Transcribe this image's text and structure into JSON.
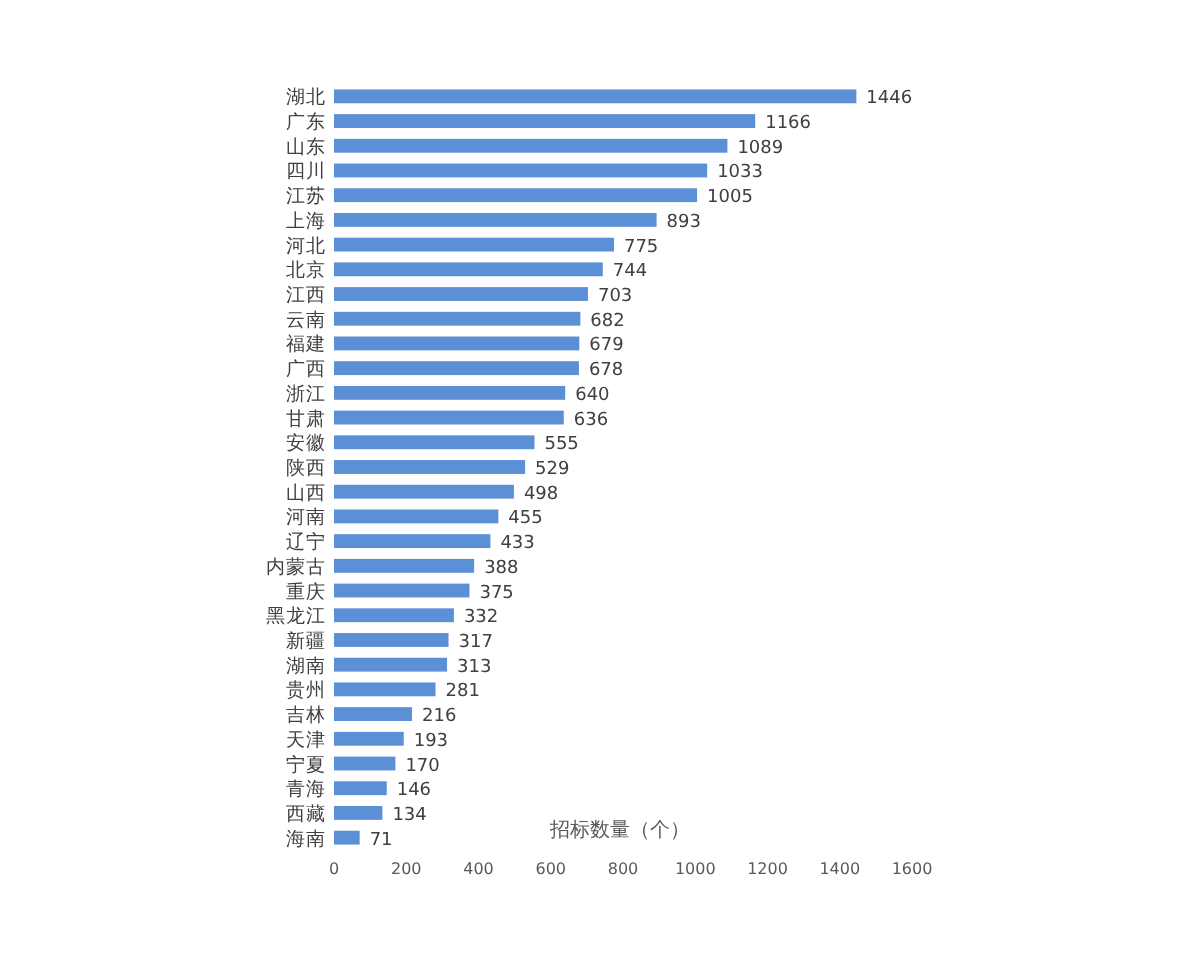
{
  "chart_data": {
    "type": "bar",
    "orientation": "horizontal",
    "xlabel": "招标数量（个）",
    "categories": [
      "湖北",
      "广东",
      "山东",
      "四川",
      "江苏",
      "上海",
      "河北",
      "北京",
      "江西",
      "云南",
      "福建",
      "广西",
      "浙江",
      "甘肃",
      "安徽",
      "陕西",
      "山西",
      "河南",
      "辽宁",
      "内蒙古",
      "重庆",
      "黑龙江",
      "新疆",
      "湖南",
      "贵州",
      "吉林",
      "天津",
      "宁夏",
      "青海",
      "西藏",
      "海南"
    ],
    "values": [
      1446,
      1166,
      1089,
      1033,
      1005,
      893,
      775,
      744,
      703,
      682,
      679,
      678,
      640,
      636,
      555,
      529,
      498,
      455,
      433,
      388,
      375,
      332,
      317,
      313,
      281,
      216,
      193,
      170,
      146,
      134,
      71
    ],
    "color": "#5b8fd6",
    "xlim": [
      0,
      1600
    ],
    "xticks": [
      0,
      200,
      400,
      600,
      800,
      1000,
      1200,
      1400,
      1600
    ],
    "data_labels": true
  }
}
